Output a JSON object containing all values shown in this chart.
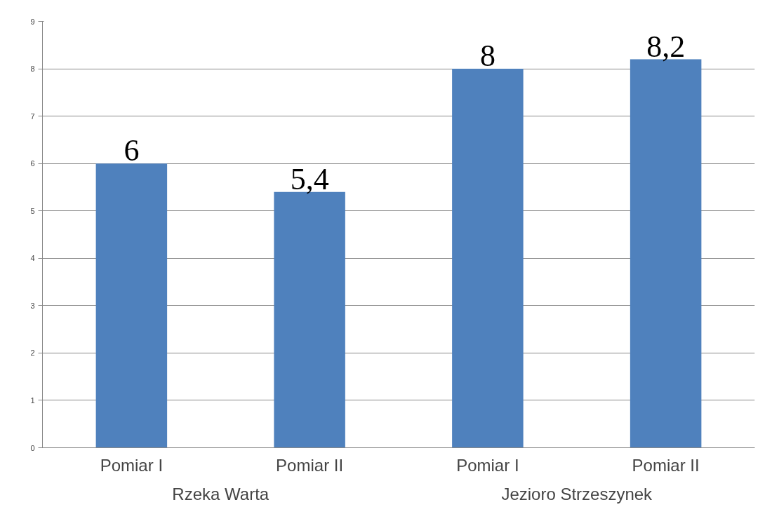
{
  "chart_data": {
    "type": "bar",
    "categories": [
      "Pomiar I",
      "Pomiar II",
      "Pomiar I",
      "Pomiar II"
    ],
    "values": [
      6,
      5.4,
      8,
      8.2
    ],
    "color": "#4f81bd",
    "value_labels": [
      "6",
      "5,4",
      "8",
      "8,2"
    ],
    "ylim": [
      0,
      9
    ],
    "yticks": [
      0,
      1,
      2,
      3,
      4,
      5,
      6,
      7,
      8,
      9
    ],
    "grid": "y",
    "annotations": [
      "Rzeka Warta",
      "Jezioro Strzeszynek"
    ]
  }
}
